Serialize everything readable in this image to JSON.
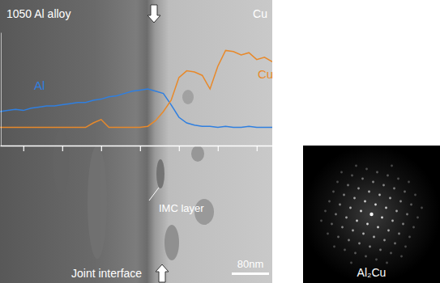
{
  "chart_data": {
    "type": "line",
    "tick_labels": false,
    "xlim": [
      0,
      7
    ],
    "xticks": [
      0.6,
      1.6,
      2.6,
      3.6,
      4.6,
      5.6,
      6.6
    ],
    "ylim": [
      0,
      100
    ],
    "x": [
      0,
      0.2,
      0.4,
      0.6,
      0.8,
      1,
      1.2,
      1.4,
      1.6,
      1.8,
      2,
      2.2,
      2.4,
      2.6,
      2.8,
      3,
      3.2,
      3.4,
      3.6,
      3.8,
      4,
      4.2,
      4.4,
      4.6,
      4.8,
      5,
      5.2,
      5.4,
      5.6,
      5.8,
      6,
      6.2,
      6.4,
      6.6,
      6.8,
      7
    ],
    "series": [
      {
        "name": "Al",
        "color": "#2f7fe0",
        "values": [
          30,
          31,
          32,
          31,
          33,
          34,
          35,
          35,
          36,
          37,
          38,
          38,
          40,
          41,
          43,
          44,
          46,
          48,
          49,
          50,
          48,
          46,
          36,
          25,
          20,
          18,
          17,
          17,
          16,
          17,
          16,
          16,
          17,
          16,
          16,
          16
        ]
      },
      {
        "name": "Cu",
        "color": "#e8892a",
        "values": [
          16,
          16,
          16,
          16,
          16,
          16,
          16,
          16,
          16,
          16,
          16,
          16,
          20,
          23,
          16,
          16,
          16,
          16,
          16,
          17,
          22,
          30,
          40,
          60,
          66,
          65,
          62,
          50,
          70,
          84,
          83,
          80,
          82,
          76,
          78,
          74
        ]
      }
    ],
    "annotations": [
      "1050 Al alloy",
      "Cu",
      "IMC layer",
      "Joint interface",
      "80nm",
      "Al₂Cu"
    ]
  }
}
